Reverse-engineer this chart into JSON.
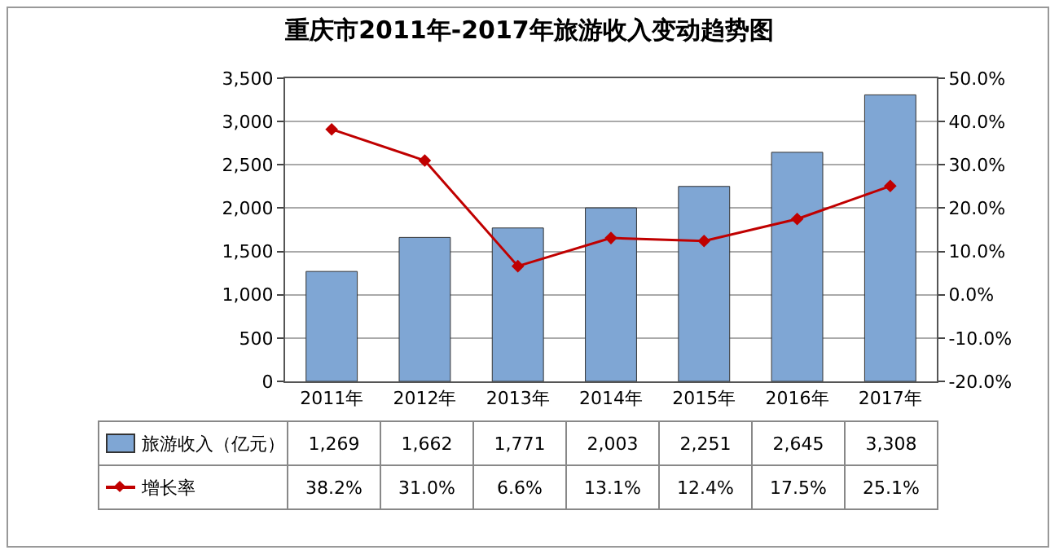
{
  "chart_data": {
    "type": "bar",
    "title": "重庆市2011年-2017年旅游收入变动趋势图",
    "categories": [
      "2011年",
      "2012年",
      "2013年",
      "2014年",
      "2015年",
      "2016年",
      "2017年"
    ],
    "series": [
      {
        "name": "旅游收入（亿元）",
        "color": "#7fa6d4",
        "values": [
          1269,
          1662,
          1771,
          2003,
          2251,
          2645,
          3308
        ],
        "value_labels": [
          "1,269",
          "1,662",
          "1,771",
          "2,003",
          "2,251",
          "2,645",
          "3,308"
        ]
      },
      {
        "name": "增长率",
        "type": "line",
        "axis": "y2",
        "color": "#c00000",
        "marker": "diamond",
        "values": [
          38.2,
          31.0,
          6.6,
          13.1,
          12.4,
          17.5,
          25.1
        ],
        "value_labels": [
          "38.2%",
          "31.0%",
          "6.6%",
          "13.1%",
          "12.4%",
          "17.5%",
          "25.1%"
        ]
      }
    ],
    "data_labels": true,
    "ylim": [
      0,
      3500
    ],
    "yticks": [
      0,
      {
        "value": 500,
        "label": "500"
      },
      {
        "value": 1000,
        "label": "1,000"
      },
      {
        "value": 1500,
        "label": "1,500"
      },
      {
        "value": 2000,
        "label": "2,000"
      },
      {
        "value": 2500,
        "label": "2,500"
      },
      {
        "value": 3000,
        "label": "3,000"
      },
      {
        "value": 3500,
        "label": "3,500"
      }
    ],
    "y2lim": [
      -20,
      50
    ],
    "y2ticks": [
      {
        "value": -20,
        "label": "-20.0%"
      },
      {
        "value": -10,
        "label": "-10.0%"
      },
      {
        "value": 0,
        "label": "0.0%"
      },
      {
        "value": 10,
        "label": "10.0%"
      },
      {
        "value": 20,
        "label": "20.0%"
      },
      {
        "value": 30,
        "label": "30.0%"
      },
      {
        "value": 40,
        "label": "40.0%"
      },
      {
        "value": 50,
        "label": "50.0%"
      }
    ],
    "grid": "y",
    "legend": "bottom"
  }
}
